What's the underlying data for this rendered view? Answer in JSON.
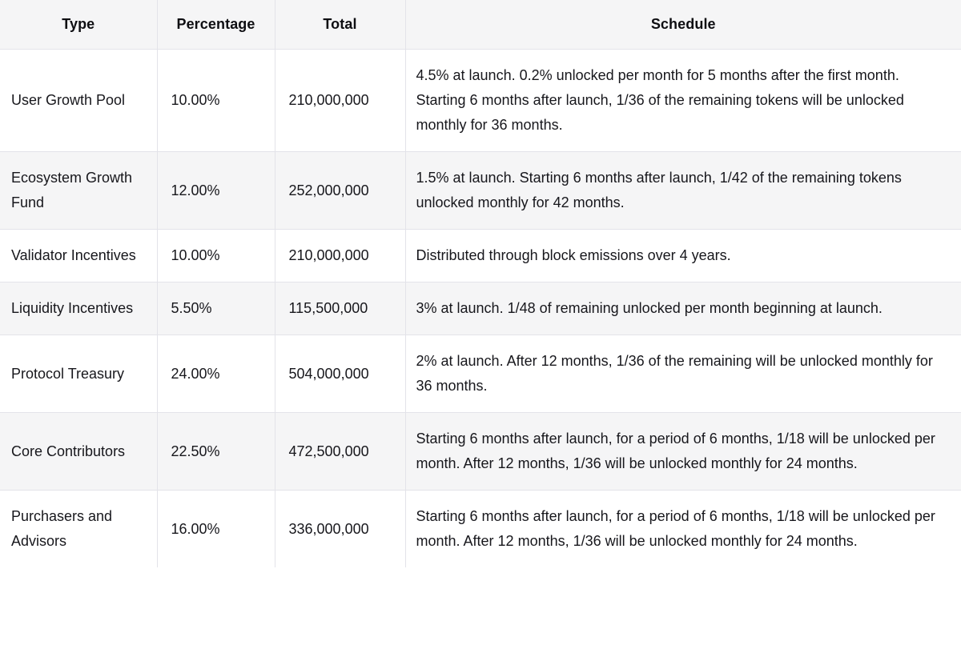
{
  "colors": {
    "header_background": "#f5f5f6",
    "stripe_background": "#f5f5f6",
    "border": "#e3e3e9",
    "text": "#17171c"
  },
  "table": {
    "columns": {
      "type": "Type",
      "percentage": "Percentage",
      "total": "Total",
      "schedule": "Schedule"
    },
    "rows": [
      {
        "type": "User Growth Pool",
        "percentage": "10.00%",
        "total": "210,000,000",
        "schedule": "4.5% at launch. 0.2% unlocked per month for 5 months after the first month. Starting 6 months after launch, 1/36 of the remaining tokens will be unlocked monthly for 36 months."
      },
      {
        "type": "Ecosystem Growth Fund",
        "percentage": "12.00%",
        "total": "252,000,000",
        "schedule": "1.5% at launch. Starting 6 months after launch, 1/42 of the remaining tokens unlocked monthly for 42 months."
      },
      {
        "type": "Validator Incentives",
        "percentage": "10.00%",
        "total": "210,000,000",
        "schedule": "Distributed through block emissions over 4 years."
      },
      {
        "type": "Liquidity Incentives",
        "percentage": "5.50%",
        "total": "115,500,000",
        "schedule": "3% at launch. 1/48 of remaining unlocked per month beginning at launch."
      },
      {
        "type": "Protocol Treasury",
        "percentage": "24.00%",
        "total": "504,000,000",
        "schedule": "2% at launch. After 12 months, 1/36 of the remaining will be unlocked monthly for 36 months."
      },
      {
        "type": "Core Contributors",
        "percentage": "22.50%",
        "total": "472,500,000",
        "schedule": "Starting 6 months after launch, for a period of 6 months, 1/18 will be unlocked per month. After 12 months, 1/36 will be unlocked monthly for 24 months."
      },
      {
        "type": "Purchasers and Advisors",
        "percentage": "16.00%",
        "total": "336,000,000",
        "schedule": "Starting 6 months after launch, for a period of 6 months, 1/18 will be unlocked per month. After 12 months, 1/36 will be unlocked monthly for 24 months."
      }
    ]
  }
}
